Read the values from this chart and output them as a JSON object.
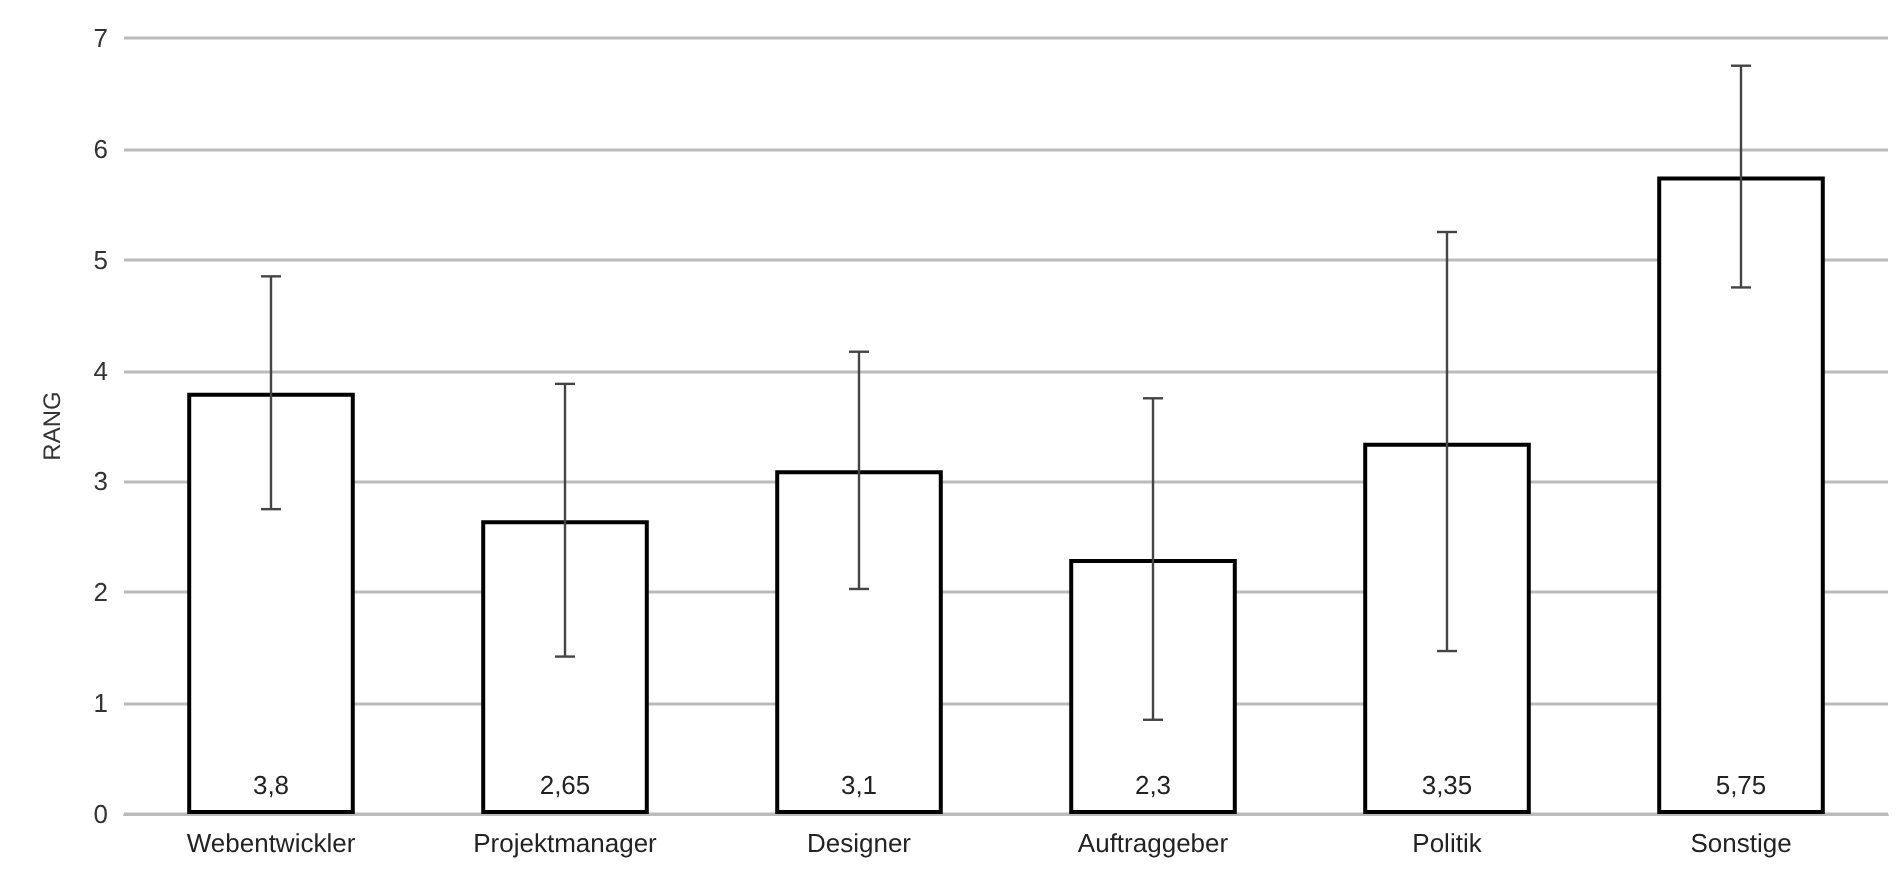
{
  "chart_data": {
    "type": "bar",
    "ylabel": "RANG",
    "categories": [
      "Webentwickler",
      "Projektmanager",
      "Designer",
      "Auftraggeber",
      "Politik",
      "Sonstige"
    ],
    "values": [
      3.8,
      2.65,
      3.1,
      2.3,
      3.35,
      5.75
    ],
    "value_labels": [
      "3,8",
      "2,65",
      "3,1",
      "2,3",
      "3,35",
      "5,75"
    ],
    "errors": [
      [
        2.75,
        4.85
      ],
      [
        1.42,
        3.88
      ],
      [
        2.03,
        4.17
      ],
      [
        0.85,
        3.75
      ],
      [
        1.47,
        5.25
      ],
      [
        4.75,
        6.75
      ]
    ],
    "color": "#ffffff",
    "ylim": [
      0,
      7
    ],
    "yticks": [
      0,
      1,
      2,
      3,
      4,
      5,
      6,
      7
    ],
    "grid": "y"
  }
}
